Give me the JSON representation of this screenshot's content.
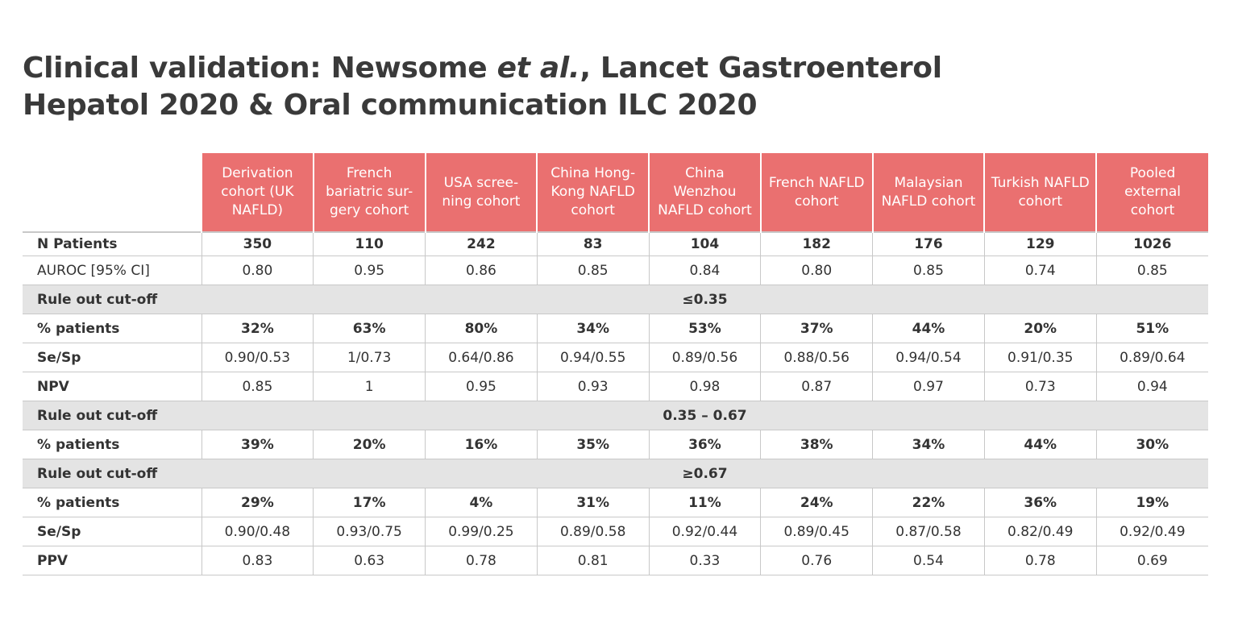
{
  "title": {
    "line1_pre": "Clinical validation: Newsome ",
    "line1_em": "et al.",
    "line1_post": ", Lancet Gastroenterol",
    "line2": "Hepatol  2020 & Oral communication ILC 2020"
  },
  "colors": {
    "header_bg": "#ea7070",
    "section_bg": "#e4e4e4"
  },
  "columns": [
    "Derivation cohort (UK NAFLD)",
    "French bariatric sur-gery cohort",
    "USA scree-ning cohort",
    "China Hong-Kong NAFLD cohort",
    "China Wenzhou NAFLD cohort",
    "French NAFLD cohort",
    "Malaysian NAFLD cohort",
    "Turkish NAFLD cohort",
    "Pooled external cohort"
  ],
  "rows": [
    {
      "label": "N Patients",
      "type": "bold",
      "values": [
        "350",
        "110",
        "242",
        "83",
        "104",
        "182",
        "176",
        "129",
        "1026"
      ]
    },
    {
      "label": "AUROC [95% CI]",
      "type": "normal",
      "values": [
        "0.80",
        "0.95",
        "0.86",
        "0.85",
        "0.84",
        "0.80",
        "0.85",
        "0.74",
        "0.85"
      ]
    },
    {
      "label": "Rule out cut-off",
      "type": "section",
      "span": "≤0.35"
    },
    {
      "label": "% patients",
      "type": "bold",
      "values": [
        "32%",
        "63%",
        "80%",
        "34%",
        "53%",
        "37%",
        "44%",
        "20%",
        "51%"
      ]
    },
    {
      "label": "Se/Sp",
      "type": "normal",
      "lblbold": true,
      "values": [
        "0.90/0.53",
        "1/0.73",
        "0.64/0.86",
        "0.94/0.55",
        "0.89/0.56",
        "0.88/0.56",
        "0.94/0.54",
        "0.91/0.35",
        "0.89/0.64"
      ]
    },
    {
      "label": "NPV",
      "type": "normal",
      "lblbold": true,
      "values": [
        "0.85",
        "1",
        "0.95",
        "0.93",
        "0.98",
        "0.87",
        "0.97",
        "0.73",
        "0.94"
      ]
    },
    {
      "label": "Rule out cut-off",
      "type": "section",
      "span": "0.35 – 0.67"
    },
    {
      "label": "% patients",
      "type": "bold",
      "values": [
        "39%",
        "20%",
        "16%",
        "35%",
        "36%",
        "38%",
        "34%",
        "44%",
        "30%"
      ]
    },
    {
      "label": "Rule out cut-off",
      "type": "section",
      "span": "≥0.67"
    },
    {
      "label": "% patients",
      "type": "bold",
      "values": [
        "29%",
        "17%",
        "4%",
        "31%",
        "11%",
        "24%",
        "22%",
        "36%",
        "19%"
      ]
    },
    {
      "label": "Se/Sp",
      "type": "normal",
      "lblbold": true,
      "values": [
        "0.90/0.48",
        "0.93/0.75",
        "0.99/0.25",
        "0.89/0.58",
        "0.92/0.44",
        "0.89/0.45",
        "0.87/0.58",
        "0.82/0.49",
        "0.92/0.49"
      ]
    },
    {
      "label": "PPV",
      "type": "normal",
      "lblbold": true,
      "values": [
        "0.83",
        "0.63",
        "0.78",
        "0.81",
        "0.33",
        "0.76",
        "0.54",
        "0.78",
        "0.69"
      ]
    }
  ]
}
